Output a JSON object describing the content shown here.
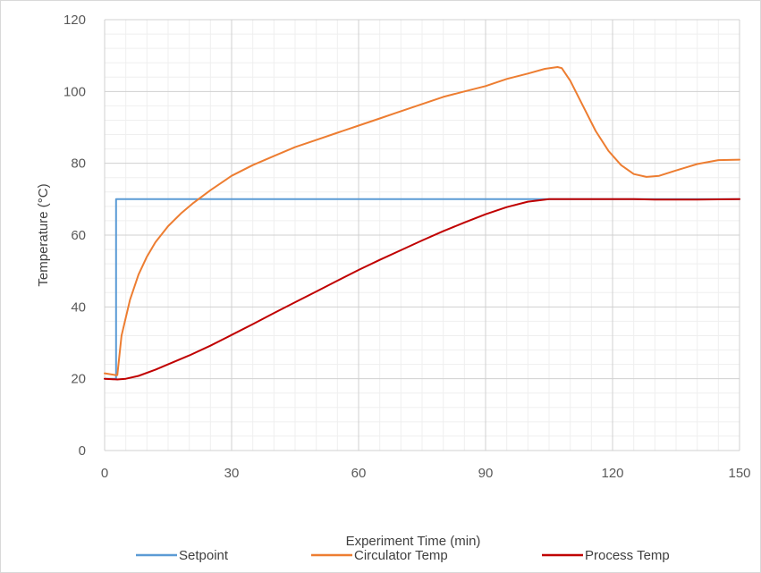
{
  "chart_data": {
    "type": "line",
    "xlabel": "Experiment Time (min)",
    "ylabel": "Temperature (°C)",
    "xlim": [
      0,
      150
    ],
    "ylim": [
      0,
      120
    ],
    "xticks": [
      "0",
      "30",
      "60",
      "90",
      "120",
      "150"
    ],
    "yticks": [
      "0",
      "20",
      "40",
      "60",
      "80",
      "100",
      "120"
    ],
    "grid": true,
    "legend_position": "bottom",
    "series": [
      {
        "name": "Setpoint",
        "color": "#5b9bd5",
        "points": [
          [
            0,
            20
          ],
          [
            2.7,
            20
          ],
          [
            2.7,
            70
          ],
          [
            150,
            70
          ]
        ]
      },
      {
        "name": "Circulator Temp",
        "color": "#ed7d31",
        "points": [
          [
            0,
            21.5
          ],
          [
            2.6,
            21
          ],
          [
            3,
            21
          ],
          [
            4,
            32
          ],
          [
            6,
            42
          ],
          [
            8,
            49
          ],
          [
            10,
            54
          ],
          [
            12,
            58
          ],
          [
            15,
            62.5
          ],
          [
            18,
            66
          ],
          [
            21,
            69
          ],
          [
            25,
            72.5
          ],
          [
            30,
            76.5
          ],
          [
            35,
            79.5
          ],
          [
            40,
            82
          ],
          [
            45,
            84.5
          ],
          [
            50,
            86.5
          ],
          [
            55,
            88.5
          ],
          [
            60,
            90.5
          ],
          [
            65,
            92.5
          ],
          [
            70,
            94.5
          ],
          [
            75,
            96.5
          ],
          [
            80,
            98.5
          ],
          [
            85,
            100
          ],
          [
            90,
            101.5
          ],
          [
            95,
            103.5
          ],
          [
            100,
            105
          ],
          [
            104,
            106.3
          ],
          [
            107,
            106.8
          ],
          [
            108,
            106.5
          ],
          [
            110,
            103
          ],
          [
            113,
            96
          ],
          [
            116,
            89
          ],
          [
            119,
            83.5
          ],
          [
            122,
            79.5
          ],
          [
            125,
            77
          ],
          [
            128,
            76.2
          ],
          [
            131,
            76.5
          ],
          [
            135,
            78
          ],
          [
            140,
            79.8
          ],
          [
            145,
            80.9
          ],
          [
            150,
            81
          ]
        ]
      },
      {
        "name": "Process Temp",
        "color": "#c00000",
        "points": [
          [
            0,
            20
          ],
          [
            3,
            19.8
          ],
          [
            5,
            20
          ],
          [
            8,
            20.8
          ],
          [
            12,
            22.5
          ],
          [
            16,
            24.5
          ],
          [
            20,
            26.5
          ],
          [
            25,
            29.2
          ],
          [
            30,
            32.2
          ],
          [
            35,
            35.2
          ],
          [
            40,
            38.3
          ],
          [
            45,
            41.3
          ],
          [
            50,
            44.3
          ],
          [
            55,
            47.3
          ],
          [
            60,
            50.3
          ],
          [
            65,
            53.1
          ],
          [
            70,
            55.8
          ],
          [
            75,
            58.5
          ],
          [
            80,
            61.1
          ],
          [
            85,
            63.5
          ],
          [
            90,
            65.8
          ],
          [
            95,
            67.8
          ],
          [
            100,
            69.3
          ],
          [
            105,
            70
          ],
          [
            110,
            70
          ],
          [
            115,
            70
          ],
          [
            120,
            70
          ],
          [
            125,
            70
          ],
          [
            130,
            69.9
          ],
          [
            140,
            69.9
          ],
          [
            150,
            70
          ]
        ]
      }
    ]
  }
}
